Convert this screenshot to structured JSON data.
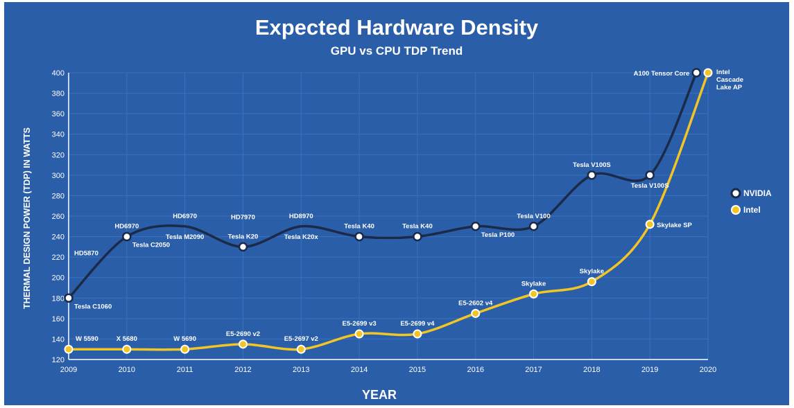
{
  "chart_data": {
    "type": "line",
    "title": "Expected Hardware Density",
    "subtitle": "GPU vs CPU TDP Trend",
    "xlabel": "YEAR",
    "ylabel": "THERMAL DESIGN POWER (TDP) IN WATTS",
    "x_ticks": [
      "2009",
      "2010",
      "2011",
      "2012",
      "2013",
      "2014",
      "2015",
      "2016",
      "2017",
      "2018",
      "2019",
      "2020"
    ],
    "y_ticks": [
      120,
      140,
      160,
      180,
      200,
      220,
      240,
      260,
      280,
      300,
      320,
      340,
      360,
      380,
      400
    ],
    "ylim": [
      120,
      400
    ],
    "xlim": [
      2009,
      2020
    ],
    "grid": true,
    "legend_position": "right",
    "colors": {
      "background": "#2a5ea8",
      "grid": "#3b72bd",
      "nvidia": "#1b2a48",
      "intel": "#f2c526",
      "text": "#ffffff"
    },
    "series": [
      {
        "name": "NVIDIA",
        "color": "#1b2a48",
        "points": [
          {
            "x": 2009,
            "y": 180,
            "marker": true
          },
          {
            "x": 2010,
            "y": 240,
            "marker": true
          },
          {
            "x": 2011,
            "y": 250,
            "marker": false
          },
          {
            "x": 2012,
            "y": 230,
            "marker": true
          },
          {
            "x": 2013,
            "y": 250,
            "marker": false
          },
          {
            "x": 2014,
            "y": 240,
            "marker": true
          },
          {
            "x": 2015,
            "y": 240,
            "marker": true
          },
          {
            "x": 2016,
            "y": 250,
            "marker": true
          },
          {
            "x": 2017,
            "y": 250,
            "marker": true
          },
          {
            "x": 2018,
            "y": 300,
            "marker": true
          },
          {
            "x": 2019,
            "y": 300,
            "marker": true
          },
          {
            "x": 2019.8,
            "y": 400,
            "marker": true
          }
        ]
      },
      {
        "name": "Intel",
        "color": "#f2c526",
        "points": [
          {
            "x": 2009,
            "y": 130,
            "marker": true
          },
          {
            "x": 2010,
            "y": 130,
            "marker": true
          },
          {
            "x": 2011,
            "y": 130,
            "marker": true
          },
          {
            "x": 2012,
            "y": 135,
            "marker": true
          },
          {
            "x": 2013,
            "y": 130,
            "marker": true
          },
          {
            "x": 2014,
            "y": 145,
            "marker": true
          },
          {
            "x": 2015,
            "y": 145,
            "marker": true
          },
          {
            "x": 2016,
            "y": 165,
            "marker": true
          },
          {
            "x": 2017,
            "y": 184,
            "marker": true
          },
          {
            "x": 2018,
            "y": 196,
            "marker": true
          },
          {
            "x": 2019,
            "y": 252,
            "marker": true
          },
          {
            "x": 2020,
            "y": 400,
            "marker": true
          }
        ]
      }
    ],
    "annotations": [
      {
        "text": "Tesla C1060",
        "x": 2009,
        "y": 180,
        "pos": "below-right"
      },
      {
        "text": "HD5870",
        "x": 2009,
        "y": 180,
        "pos": "upper-right"
      },
      {
        "text": "HD6970",
        "x": 2010,
        "y": 240,
        "pos": "above"
      },
      {
        "text": "Tesla C2050",
        "x": 2010,
        "y": 240,
        "pos": "below-right"
      },
      {
        "text": "HD6970",
        "x": 2011,
        "y": 250,
        "pos": "above"
      },
      {
        "text": "Tesla M2090",
        "x": 2011,
        "y": 250,
        "pos": "below"
      },
      {
        "text": "HD7970",
        "x": 2012,
        "y": 230,
        "pos": "above-high"
      },
      {
        "text": "Tesla K20",
        "x": 2012,
        "y": 230,
        "pos": "above"
      },
      {
        "text": "HD8970",
        "x": 2013,
        "y": 250,
        "pos": "above"
      },
      {
        "text": "Tesla K20x",
        "x": 2013,
        "y": 250,
        "pos": "below"
      },
      {
        "text": "Tesla K40",
        "x": 2014,
        "y": 240,
        "pos": "above"
      },
      {
        "text": "Tesla K40",
        "x": 2015,
        "y": 240,
        "pos": "above"
      },
      {
        "text": "Tesla P100",
        "x": 2016,
        "y": 250,
        "pos": "below-right"
      },
      {
        "text": "Tesla V100",
        "x": 2017,
        "y": 250,
        "pos": "above"
      },
      {
        "text": "Tesla V100S",
        "x": 2018,
        "y": 300,
        "pos": "above"
      },
      {
        "text": "Tesla V100S",
        "x": 2019,
        "y": 300,
        "pos": "below"
      },
      {
        "text": "A100 Tensor Core",
        "x": 2019.8,
        "y": 400,
        "pos": "left"
      },
      {
        "text": "Intel",
        "x": 2020,
        "y": 400,
        "pos": "right-1"
      },
      {
        "text": "Cascade",
        "x": 2020,
        "y": 400,
        "pos": "right-2"
      },
      {
        "text": "Lake AP",
        "x": 2020,
        "y": 400,
        "pos": "right-3"
      },
      {
        "text": "W 5590",
        "x": 2009,
        "y": 130,
        "pos": "above-right"
      },
      {
        "text": "X 5680",
        "x": 2010,
        "y": 130,
        "pos": "above"
      },
      {
        "text": "W 5690",
        "x": 2011,
        "y": 130,
        "pos": "above"
      },
      {
        "text": "E5-2690 v2",
        "x": 2012,
        "y": 135,
        "pos": "above"
      },
      {
        "text": "E5-2697 v2",
        "x": 2013,
        "y": 130,
        "pos": "above"
      },
      {
        "text": "E5-2699 v3",
        "x": 2014,
        "y": 145,
        "pos": "above"
      },
      {
        "text": "E5-2699 v4",
        "x": 2015,
        "y": 145,
        "pos": "above"
      },
      {
        "text": "E5-2602 v4",
        "x": 2016,
        "y": 165,
        "pos": "above"
      },
      {
        "text": "Skylake",
        "x": 2017,
        "y": 184,
        "pos": "above"
      },
      {
        "text": "Skylake",
        "x": 2018,
        "y": 196,
        "pos": "above"
      },
      {
        "text": "Skylake SP",
        "x": 2019,
        "y": 252,
        "pos": "right"
      }
    ]
  }
}
